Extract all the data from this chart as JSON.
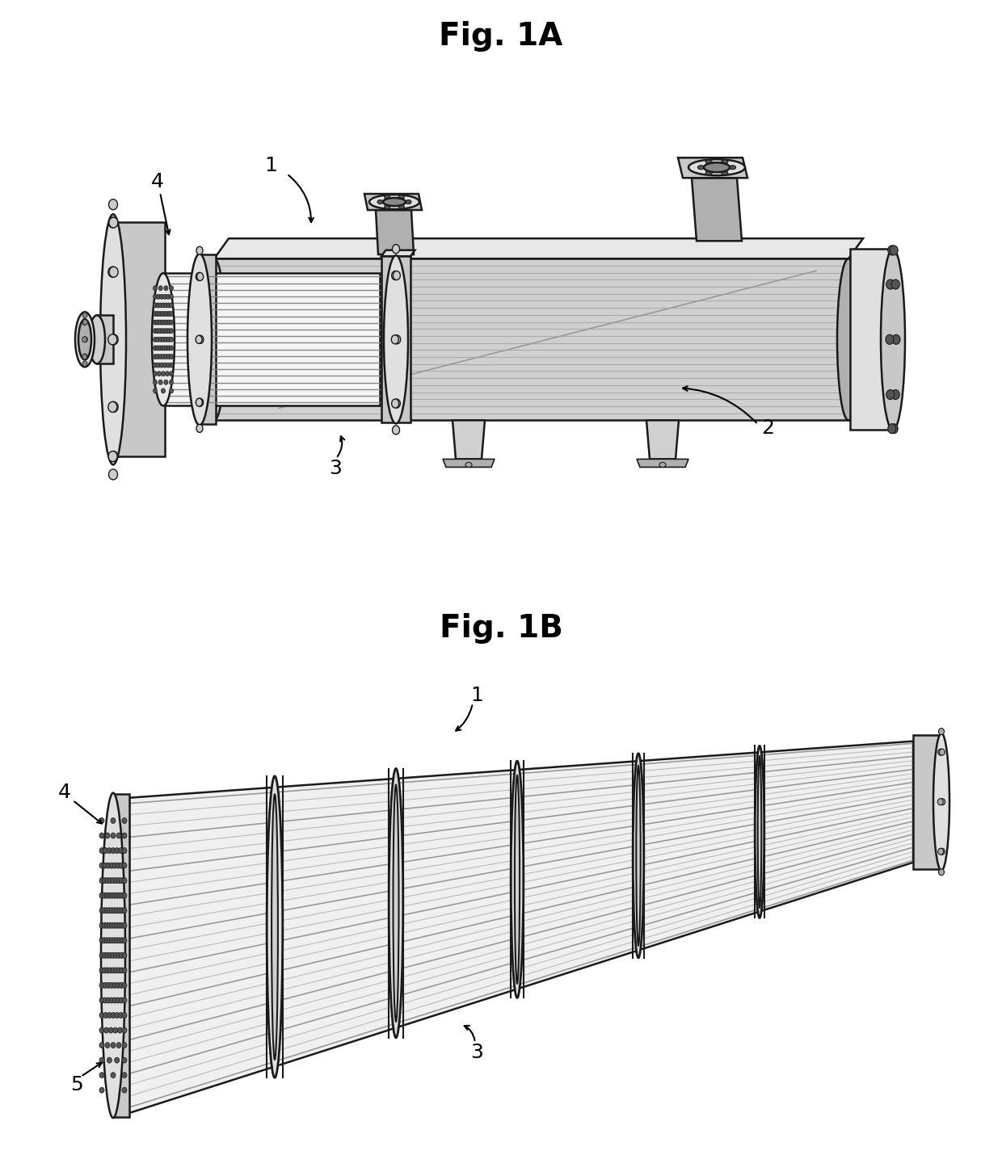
{
  "fig1a_title": "Fig. 1A",
  "fig1b_title": "Fig. 1B",
  "background_color": "#ffffff",
  "lc": "#1a1a1a",
  "shell_light": "#e8e8e8",
  "shell_mid": "#d0d0d0",
  "shell_dark": "#b0b0b0",
  "shell_darker": "#888888",
  "flange_light": "#e0e0e0",
  "flange_mid": "#c8c8c8",
  "tube_light": "#f0f0f0",
  "tube_mid": "#d8d8d8",
  "nozzle_dark": "#a0a0a0",
  "hole_fill": "#555555",
  "label_fs": 18,
  "title_fs": 28
}
